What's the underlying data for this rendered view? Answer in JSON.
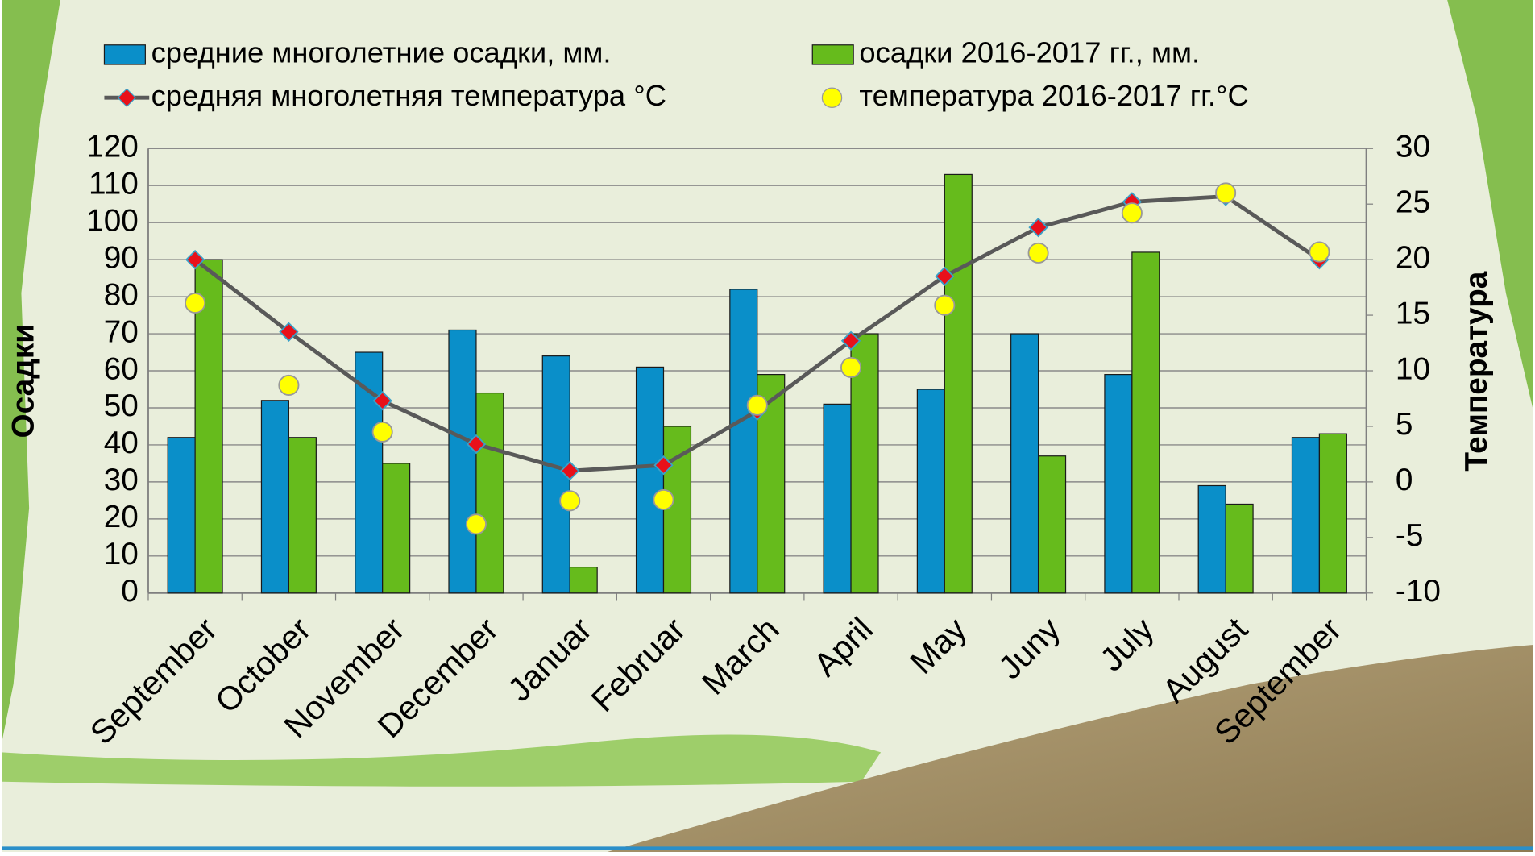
{
  "chart_data": {
    "type": "bar-line",
    "categories": [
      "September",
      "October",
      "November",
      "December",
      "Januar",
      "Februar",
      "March",
      "April",
      "May",
      "Juny",
      "July",
      "August",
      "September"
    ],
    "y_label": "Осадки",
    "y2_label": "Температура",
    "ylim": [
      0,
      120
    ],
    "yticks": [
      0,
      10,
      20,
      30,
      40,
      50,
      60,
      70,
      80,
      90,
      100,
      110,
      120
    ],
    "y2lim": [
      -10,
      30
    ],
    "y2ticks": [
      -10,
      -5,
      0,
      5,
      10,
      15,
      20,
      25,
      30
    ],
    "grid": true,
    "legend": "top",
    "series": [
      {
        "name": "средние многолетние осадки, мм.",
        "type": "bar",
        "color": "#0a8fc9",
        "values": [
          42,
          52,
          65,
          71,
          64,
          61,
          82,
          51,
          55,
          70,
          59,
          29,
          42
        ]
      },
      {
        "name": "осадки 2016-2017 гг., мм.",
        "type": "bar",
        "color": "#66bb1c",
        "values": [
          90,
          42,
          35,
          54,
          7,
          45,
          59,
          70,
          113,
          37,
          92,
          24,
          43
        ]
      },
      {
        "name": "средняя многолетняя температура °С",
        "type": "line",
        "axis": "y2",
        "color": "#595959",
        "marker_color": "#e8101a",
        "values": [
          20,
          13.5,
          7.3,
          3.4,
          1,
          1.5,
          6.4,
          12.7,
          18.5,
          22.9,
          25.2,
          25.7,
          20
        ]
      },
      {
        "name": "температура 2016-2017 гг.°С",
        "type": "scatter",
        "axis": "y2",
        "color": "#ffff00",
        "values": [
          16.1,
          8.7,
          4.5,
          -3.8,
          -1.7,
          -1.6,
          6.9,
          10.3,
          15.9,
          20.6,
          24.2,
          26,
          20.7
        ]
      }
    ]
  }
}
